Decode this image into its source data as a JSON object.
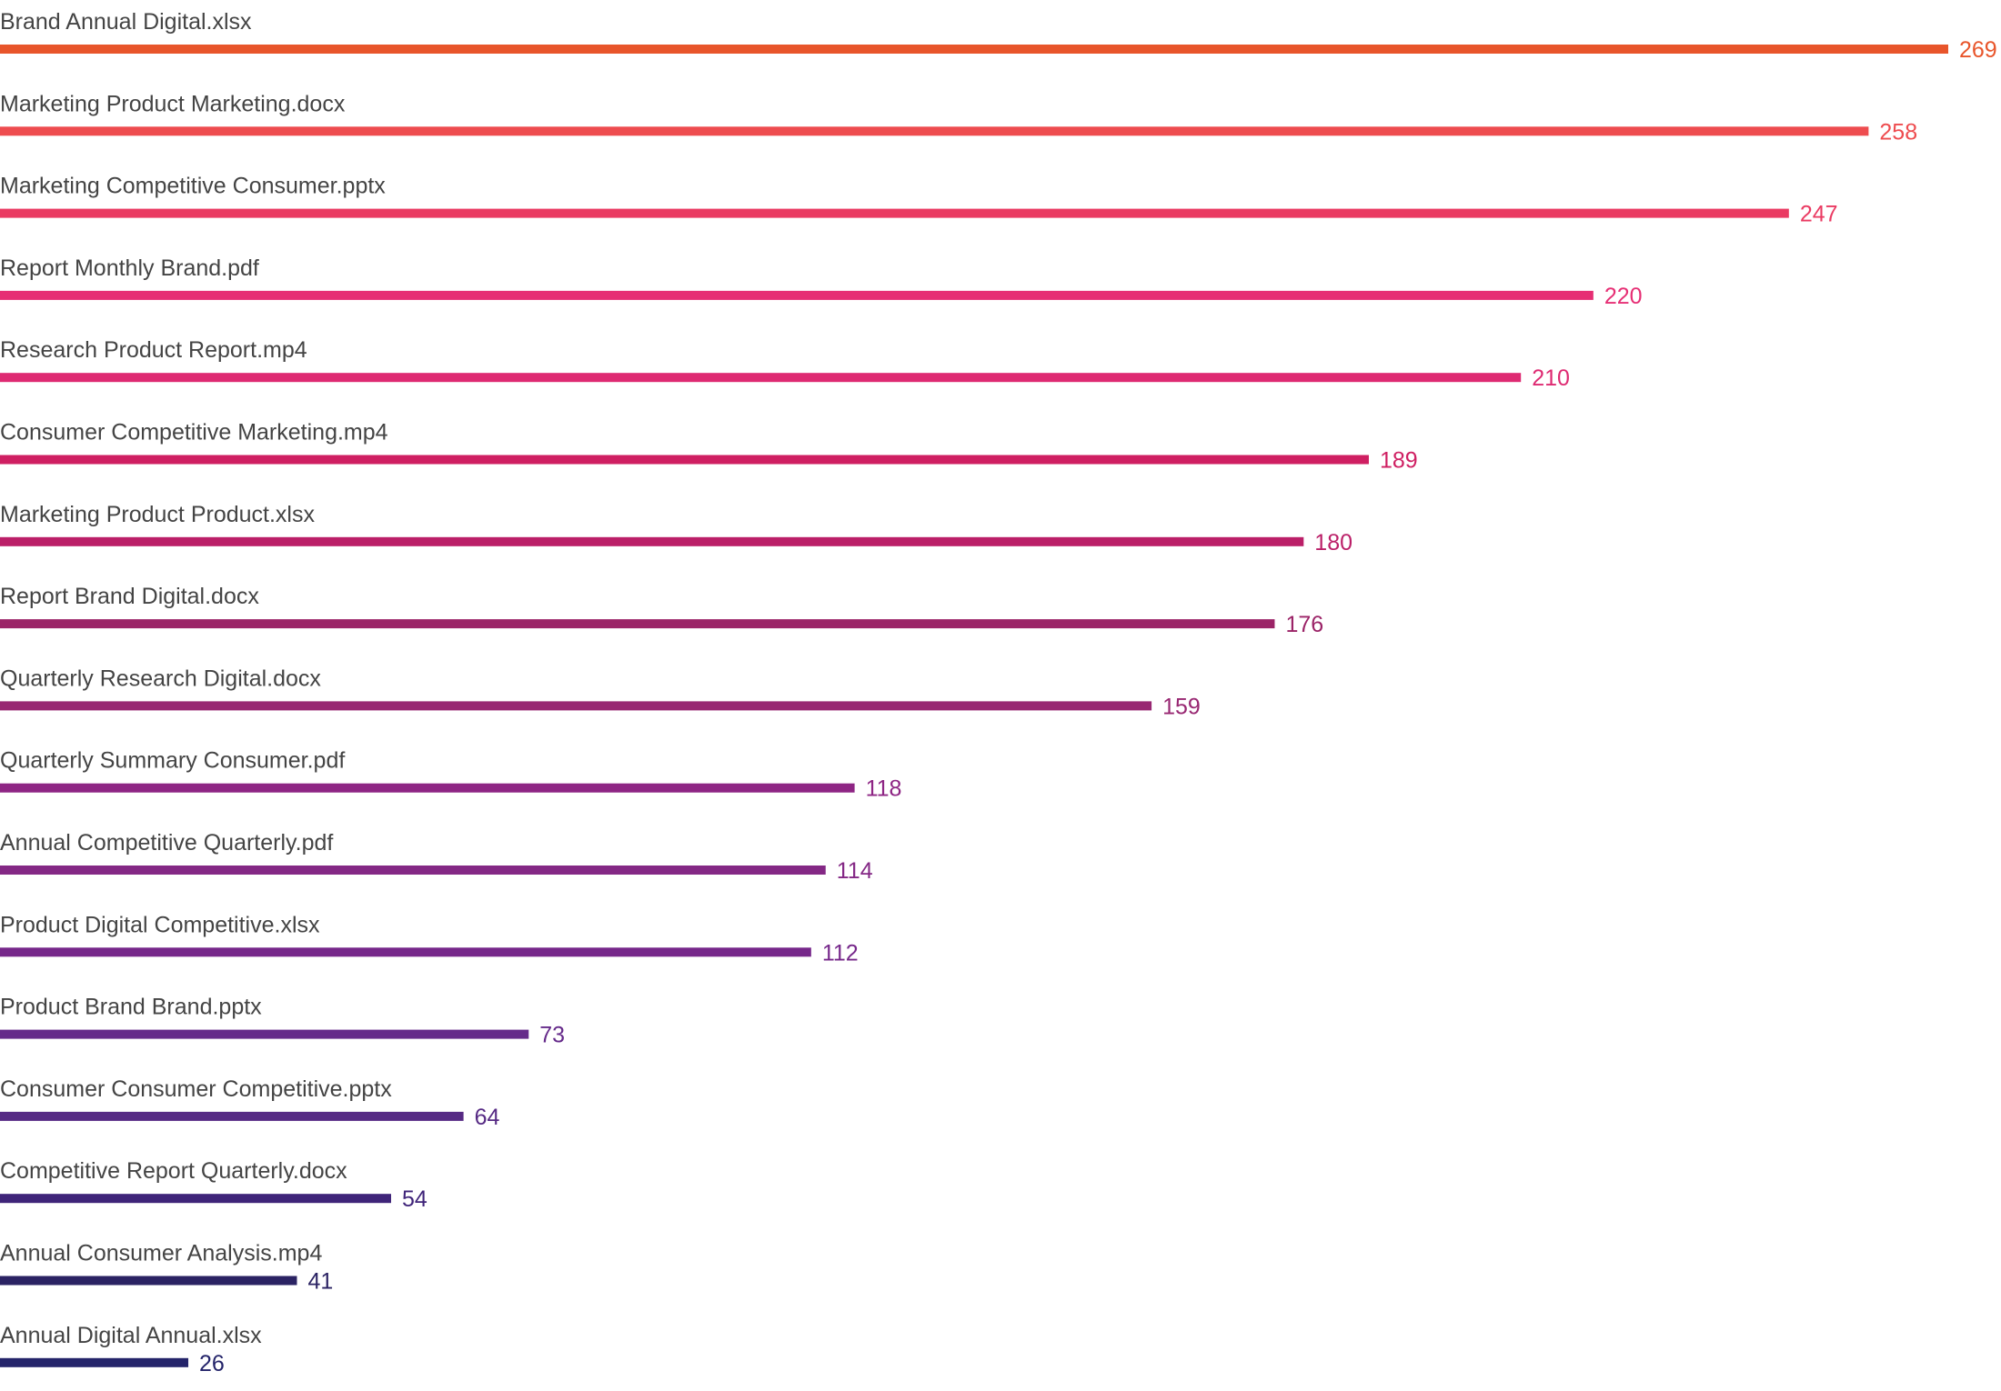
{
  "chart_data": {
    "type": "bar",
    "orientation": "horizontal",
    "title": "",
    "xlabel": "",
    "ylabel": "",
    "grid": false,
    "legend": "none",
    "xlim": [
      0,
      269
    ],
    "categories": [
      "Brand Annual Digital.xlsx",
      "Marketing Product Marketing.docx",
      "Marketing Competitive Consumer.pptx",
      "Report Monthly Brand.pdf",
      "Research Product Report.mp4",
      "Consumer Competitive Marketing.mp4",
      "Marketing Product Product.xlsx",
      "Report Brand Digital.docx",
      "Quarterly Research Digital.docx",
      "Quarterly Summary Consumer.pdf",
      "Annual Competitive Quarterly.pdf",
      "Product Digital Competitive.xlsx",
      "Product Brand Brand.pptx",
      "Consumer Consumer Competitive.pptx",
      "Competitive Report Quarterly.docx",
      "Annual Consumer Analysis.mp4",
      "Annual Digital Annual.xlsx"
    ],
    "values": [
      269,
      258,
      247,
      220,
      210,
      189,
      180,
      176,
      159,
      118,
      114,
      112,
      73,
      64,
      54,
      41,
      26
    ],
    "colors": [
      "#e8552b",
      "#ee4c4f",
      "#ea3a62",
      "#e62e74",
      "#de2a72",
      "#cf1f62",
      "#bb1f68",
      "#9b2367",
      "#982772",
      "#8e2584",
      "#842885",
      "#76278a",
      "#652a8a",
      "#562a84",
      "#3f2479",
      "#2b2363",
      "#24246a"
    ],
    "label_color": "#444444"
  }
}
